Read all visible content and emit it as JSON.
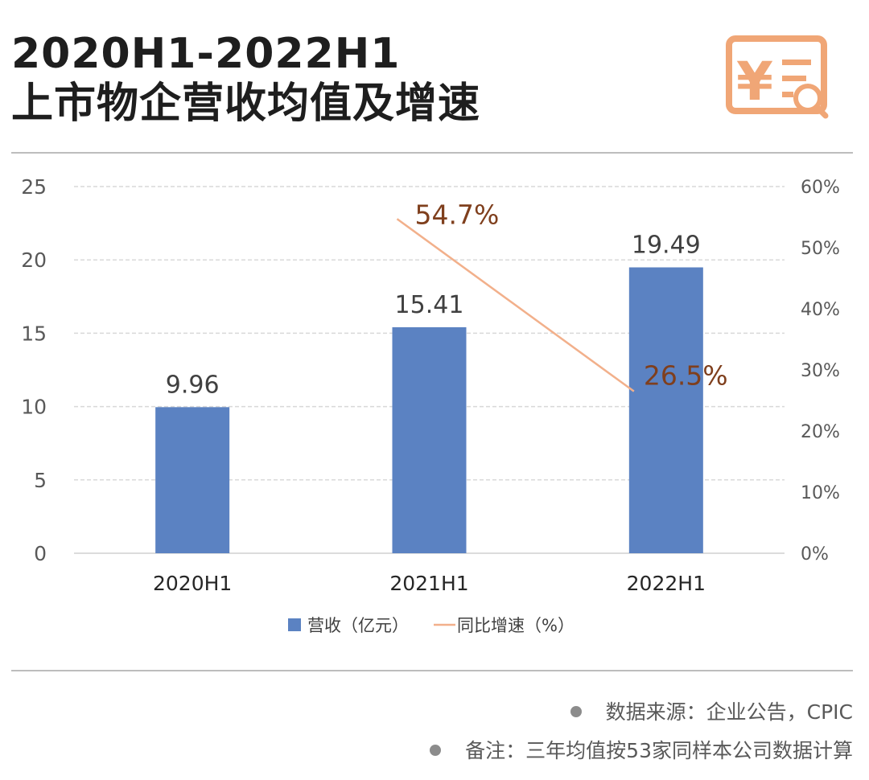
{
  "header": {
    "title_line1": "2020H1-2022H1",
    "title_line2": "上市物企营收均值及增速",
    "logo_icon": "invoice-search-icon",
    "logo_glyph": "¥",
    "accent_color": "#f0a676"
  },
  "chart_data": {
    "type": "bar",
    "categories": [
      "2020H1",
      "2021H1",
      "2022H1"
    ],
    "series": [
      {
        "name": "营收（亿元）",
        "type": "bar",
        "axis": "left",
        "values": [
          9.96,
          15.41,
          19.49
        ],
        "color": "#5b82c2",
        "labels": [
          "9.96",
          "15.41",
          "19.49"
        ]
      },
      {
        "name": "同比增速（%）",
        "type": "line",
        "axis": "right",
        "points": [
          {
            "category": "2021H1",
            "value": 54.7
          },
          {
            "category": "2022H1",
            "value": 26.5
          }
        ],
        "labels": [
          "54.7%",
          "26.5%"
        ],
        "color": "#f2b08b",
        "label_color": "#7f3f1d"
      }
    ],
    "y_left": {
      "min": 0,
      "max": 25,
      "ticks": [
        0,
        5,
        10,
        15,
        20,
        25
      ],
      "tick_labels": [
        "0",
        "5",
        "10",
        "15",
        "20",
        "25"
      ]
    },
    "y_right": {
      "min": 0,
      "max": 60,
      "ticks": [
        0,
        10,
        20,
        30,
        40,
        50,
        60
      ],
      "tick_labels": [
        "0%",
        "10%",
        "20%",
        "30%",
        "40%",
        "50%",
        "60%"
      ]
    },
    "grid": true,
    "legend_position": "bottom"
  },
  "notes": [
    "数据来源：企业公告，CPIC",
    "备注：三年均值按53家同样本公司数据计算"
  ]
}
